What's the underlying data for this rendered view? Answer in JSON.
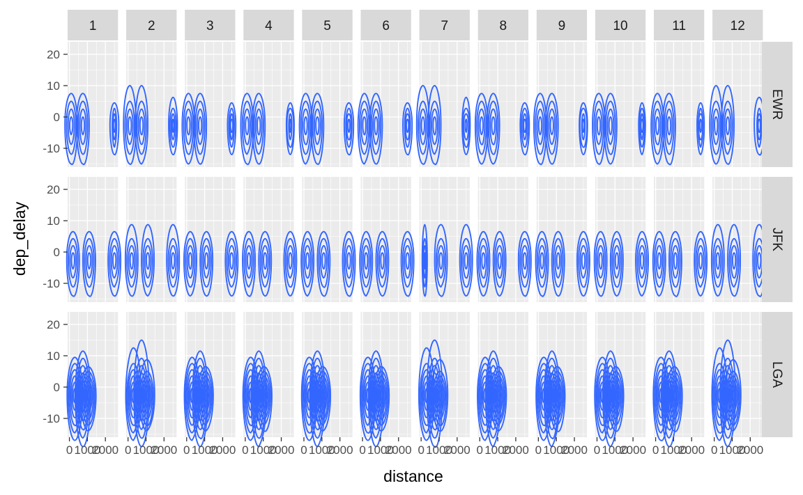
{
  "chart_data": {
    "type": "contour",
    "xlabel": "distance",
    "ylabel": "dep_delay",
    "col_facets": [
      "1",
      "2",
      "3",
      "4",
      "5",
      "6",
      "7",
      "8",
      "9",
      "10",
      "11",
      "12"
    ],
    "row_facets": [
      "EWR",
      "JFK",
      "LGA"
    ],
    "x_ticks": [
      0,
      1000,
      2000
    ],
    "x_tick_labels": [
      "0",
      "1000",
      "2000"
    ],
    "y_ticks": [
      -10,
      0,
      10,
      20
    ],
    "y_tick_labels": [
      "-10",
      "0",
      "10",
      "20"
    ],
    "xlim": [
      -100,
      2700
    ],
    "ylim": [
      -16,
      24
    ],
    "colors": {
      "panel_bg": "#ebebeb",
      "grid_major": "#ffffff",
      "strip_bg": "#d9d9d9",
      "contour": "#3366ff"
    },
    "contour_clusters": {
      "EWR": [
        {
          "x": 100,
          "y": -2.5,
          "peak": 10
        },
        {
          "x": 750,
          "y": -2.5,
          "peak": 10
        },
        {
          "x": 2500,
          "y": -2.5,
          "peak": 7
        }
      ],
      "JFK": [
        {
          "x": 200,
          "y": -2.5,
          "peak": 9
        },
        {
          "x": 1100,
          "y": -2.5,
          "peak": 9
        },
        {
          "x": 2500,
          "y": -2.5,
          "peak": 9
        }
      ],
      "LGA": [
        {
          "x": 300,
          "y": -2.5,
          "peak": 12
        },
        {
          "x": 750,
          "y": -2.5,
          "peak": 14
        },
        {
          "x": 1050,
          "y": -2.5,
          "peak": 9
        }
      ]
    }
  }
}
